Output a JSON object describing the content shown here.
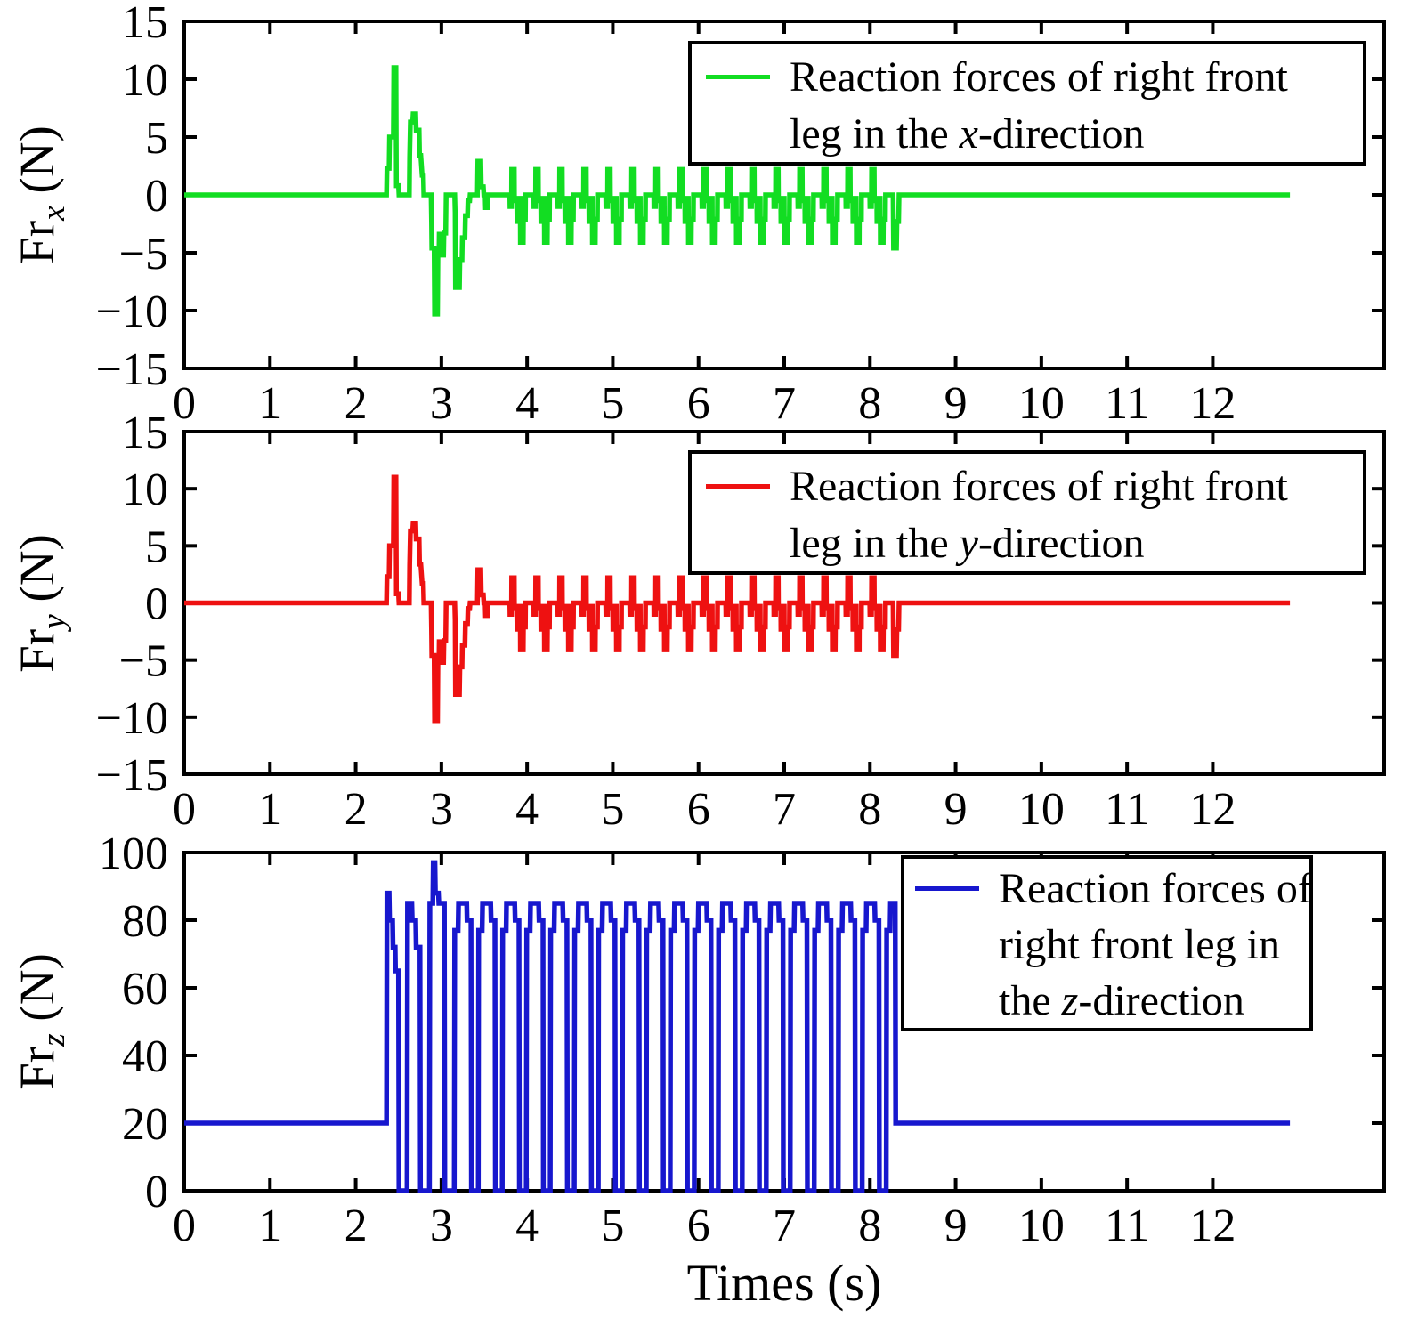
{
  "figure": {
    "background": "#ffffff",
    "axis_color": "#000000"
  },
  "x_axis": {
    "label": "Times (s)",
    "lim": [
      0,
      14
    ],
    "ticks": [
      {
        "v": 0,
        "label": "0"
      },
      {
        "v": 1,
        "label": "1"
      },
      {
        "v": 2,
        "label": "2"
      },
      {
        "v": 3,
        "label": "3"
      },
      {
        "v": 4,
        "label": "4"
      },
      {
        "v": 5,
        "label": "5"
      },
      {
        "v": 6,
        "label": "6"
      },
      {
        "v": 7,
        "label": "7"
      },
      {
        "v": 8,
        "label": "8"
      },
      {
        "v": 9,
        "label": "9"
      },
      {
        "v": 10,
        "label": "10"
      },
      {
        "v": 11,
        "label": "11"
      },
      {
        "v": 12,
        "label": "12"
      }
    ]
  },
  "chart_data": [
    {
      "type": "line",
      "id": "frx",
      "color": "#12dd22",
      "ylim": [
        -15,
        15
      ],
      "yticks": [
        {
          "v": 15,
          "label": "15"
        },
        {
          "v": 10,
          "label": "10"
        },
        {
          "v": 5,
          "label": "5"
        },
        {
          "v": 0,
          "label": "0"
        },
        {
          "v": -5,
          "label": "−5"
        },
        {
          "v": -10,
          "label": "−10"
        },
        {
          "v": -15,
          "label": "−15"
        }
      ],
      "ylabel": {
        "prefix": "Fr",
        "sub": "x",
        "unit": " (N)"
      },
      "legend": {
        "line1": "Reaction forces of right front",
        "line2_pre": "leg in the ",
        "line2_italic": "x",
        "line2_post": "-direction"
      },
      "waveform": "frxy"
    },
    {
      "type": "line",
      "id": "fry",
      "color": "#ee1111",
      "ylim": [
        -15,
        15
      ],
      "yticks": [
        {
          "v": 15,
          "label": "15"
        },
        {
          "v": 10,
          "label": "10"
        },
        {
          "v": 5,
          "label": "5"
        },
        {
          "v": 0,
          "label": "0"
        },
        {
          "v": -5,
          "label": "−5"
        },
        {
          "v": -10,
          "label": "−10"
        },
        {
          "v": -15,
          "label": "−15"
        }
      ],
      "ylabel": {
        "prefix": "Fr",
        "sub": "y",
        "unit": " (N)"
      },
      "legend": {
        "line1": "Reaction forces of right front",
        "line2_pre": "leg in the ",
        "line2_italic": "y",
        "line2_post": "-direction"
      },
      "waveform": "frxy"
    },
    {
      "type": "line",
      "id": "frz",
      "color": "#1717ce",
      "ylim": [
        0,
        100
      ],
      "yticks": [
        {
          "v": 100,
          "label": "100"
        },
        {
          "v": 80,
          "label": "80"
        },
        {
          "v": 60,
          "label": "60"
        },
        {
          "v": 40,
          "label": "40"
        },
        {
          "v": 20,
          "label": "20"
        },
        {
          "v": 0,
          "label": "0"
        }
      ],
      "ylabel": {
        "prefix": "Fr",
        "sub": "z",
        "unit": " (N)"
      },
      "legend": {
        "line1": "Reaction forces of",
        "line2_pre": "right front leg in",
        "line2_italic": "",
        "line2_post": "",
        "line3_pre": "the ",
        "line3_italic": "z",
        "line3_post": "-direction"
      },
      "waveform": "frz"
    }
  ],
  "waveforms": {
    "frxy": {
      "pre": [
        [
          0,
          0
        ],
        [
          2.36,
          0
        ],
        [
          2.365,
          2.3
        ],
        [
          2.39,
          2.3
        ],
        [
          2.395,
          5.0
        ],
        [
          2.44,
          5.0
        ],
        [
          2.445,
          11
        ],
        [
          2.47,
          11
        ],
        [
          2.475,
          0.8
        ],
        [
          2.5,
          0.8
        ],
        [
          2.505,
          0
        ],
        [
          2.625,
          0
        ],
        [
          2.63,
          3.3
        ],
        [
          2.638,
          6.3
        ],
        [
          2.665,
          6.3
        ],
        [
          2.67,
          7
        ],
        [
          2.7,
          7
        ],
        [
          2.705,
          5.6
        ],
        [
          2.74,
          5.6
        ],
        [
          2.745,
          3.4
        ],
        [
          2.76,
          3.4
        ],
        [
          2.775,
          1.7
        ],
        [
          2.79,
          1.7
        ],
        [
          2.795,
          0
        ],
        [
          2.88,
          0
        ],
        [
          2.885,
          -2.5
        ],
        [
          2.888,
          -4.6
        ],
        [
          2.915,
          -4.6
        ],
        [
          2.92,
          -10.3
        ],
        [
          2.955,
          -10.3
        ],
        [
          2.96,
          -4.7
        ],
        [
          2.972,
          -4.7
        ],
        [
          2.975,
          -3.4
        ],
        [
          2.995,
          -3.4
        ],
        [
          3.0,
          -5.2
        ],
        [
          3.025,
          -5.2
        ],
        [
          3.03,
          -3.3
        ],
        [
          3.05,
          -3.3
        ],
        [
          3.055,
          0
        ],
        [
          3.155,
          0
        ],
        [
          3.16,
          -1.5
        ],
        [
          3.165,
          -8
        ],
        [
          3.21,
          -8
        ],
        [
          3.215,
          -5.6
        ],
        [
          3.24,
          -5.6
        ],
        [
          3.245,
          -3.7
        ],
        [
          3.275,
          -3.7
        ],
        [
          3.28,
          -1.8
        ],
        [
          3.305,
          -1.8
        ],
        [
          3.31,
          -0.5
        ],
        [
          3.33,
          -0.5
        ],
        [
          3.335,
          0
        ],
        [
          3.42,
          0
        ],
        [
          3.425,
          2.9
        ],
        [
          3.46,
          2.9
        ],
        [
          3.465,
          0.7
        ],
        [
          3.49,
          0.7
        ],
        [
          3.495,
          0
        ],
        [
          3.51,
          0
        ],
        [
          3.515,
          -1.1
        ],
        [
          3.535,
          -1.1
        ],
        [
          3.54,
          0
        ],
        [
          3.79,
          0
        ]
      ],
      "cycle": {
        "start": 3.79,
        "period": 0.28,
        "count": 16,
        "shape": [
          [
            0,
            0
          ],
          [
            0.008,
            0
          ],
          [
            0.01,
            -1.0
          ],
          [
            0.028,
            -1.0
          ],
          [
            0.03,
            2.2
          ],
          [
            0.06,
            2.2
          ],
          [
            0.062,
            -0.5
          ],
          [
            0.09,
            -0.5
          ],
          [
            0.092,
            -2.3
          ],
          [
            0.115,
            -2.3
          ],
          [
            0.117,
            -0.3
          ],
          [
            0.13,
            -0.3
          ],
          [
            0.132,
            -4.1
          ],
          [
            0.165,
            -4.1
          ],
          [
            0.167,
            -2.1
          ],
          [
            0.19,
            -2.1
          ],
          [
            0.192,
            0
          ],
          [
            0.28,
            0
          ]
        ]
      },
      "post": [
        [
          8.27,
          0
        ],
        [
          8.275,
          -4.6
        ],
        [
          8.31,
          -4.6
        ],
        [
          8.315,
          -2.3
        ],
        [
          8.335,
          -2.3
        ],
        [
          8.34,
          0
        ],
        [
          12.9,
          0
        ]
      ]
    },
    "frz": {
      "pre": [
        [
          0,
          20
        ],
        [
          2.36,
          20
        ],
        [
          2.365,
          88
        ],
        [
          2.39,
          88
        ],
        [
          2.395,
          80
        ],
        [
          2.43,
          80
        ],
        [
          2.435,
          72
        ],
        [
          2.46,
          72
        ],
        [
          2.465,
          65
        ],
        [
          2.5,
          65
        ],
        [
          2.505,
          0
        ],
        [
          2.6,
          0
        ],
        [
          2.605,
          85
        ],
        [
          2.655,
          85
        ],
        [
          2.66,
          80
        ],
        [
          2.7,
          80
        ],
        [
          2.705,
          72
        ],
        [
          2.75,
          72
        ],
        [
          2.755,
          0
        ],
        [
          2.86,
          0
        ],
        [
          2.865,
          85
        ],
        [
          2.9,
          85
        ],
        [
          2.905,
          97
        ],
        [
          2.925,
          97
        ],
        [
          2.93,
          88
        ],
        [
          2.965,
          88
        ],
        [
          2.97,
          85
        ],
        [
          3.035,
          85
        ],
        [
          3.04,
          0
        ],
        [
          3.15,
          0
        ]
      ],
      "cycle": {
        "start": 3.15,
        "period": 0.28,
        "count": 18,
        "shape": [
          [
            0,
            0
          ],
          [
            0.005,
            77
          ],
          [
            0.045,
            77
          ],
          [
            0.05,
            85
          ],
          [
            0.145,
            85
          ],
          [
            0.15,
            80
          ],
          [
            0.195,
            80
          ],
          [
            0.2,
            0
          ],
          [
            0.28,
            0
          ]
        ]
      },
      "post": [
        [
          8.19,
          0
        ],
        [
          8.195,
          77
        ],
        [
          8.235,
          77
        ],
        [
          8.24,
          85
        ],
        [
          8.295,
          85
        ],
        [
          8.3,
          20
        ],
        [
          12.9,
          20
        ]
      ]
    }
  }
}
